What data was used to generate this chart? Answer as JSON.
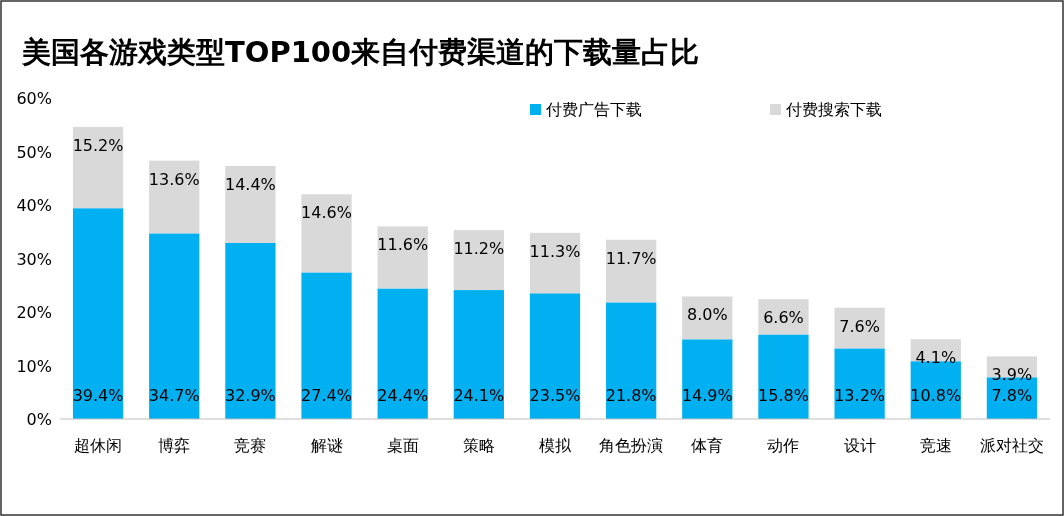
{
  "chart_data": {
    "type": "bar",
    "stacked": true,
    "title": "美国各游戏类型TOP100来自付费渠道的下载量占比",
    "categories": [
      "超休闲",
      "博弈",
      "竞赛",
      "解谜",
      "桌面",
      "策略",
      "模拟",
      "角色扮演",
      "体育",
      "动作",
      "设计",
      "竞速",
      "派对社交"
    ],
    "series": [
      {
        "name": "付费广告下载",
        "color": "#00b0f0",
        "values": [
          39.4,
          34.7,
          32.9,
          27.4,
          24.4,
          24.1,
          23.5,
          21.8,
          14.9,
          15.8,
          13.2,
          10.8,
          7.8
        ],
        "value_labels": [
          "39.4%",
          "34.7%",
          "32.9%",
          "27.4%",
          "24.4%",
          "24.1%",
          "23.5%",
          "21.8%",
          "14.9%",
          "15.8%",
          "13.2%",
          "10.8%",
          "7.8%"
        ]
      },
      {
        "name": "付费搜索下载",
        "color": "#d9d9d9",
        "values": [
          15.2,
          13.6,
          14.4,
          14.6,
          11.6,
          11.2,
          11.3,
          11.7,
          8.0,
          6.6,
          7.6,
          4.1,
          3.9
        ],
        "value_labels": [
          "15.2%",
          "13.6%",
          "14.4%",
          "14.6%",
          "11.6%",
          "11.2%",
          "11.3%",
          "11.7%",
          "8.0%",
          "6.6%",
          "7.6%",
          "4.1%",
          "3.9%"
        ]
      }
    ],
    "ylim": [
      0,
      60
    ],
    "yticks": [
      {
        "value": 0,
        "label": "0%"
      },
      {
        "value": 10,
        "label": "10%"
      },
      {
        "value": 20,
        "label": "20%"
      },
      {
        "value": 30,
        "label": "30%"
      },
      {
        "value": 40,
        "label": "40%"
      },
      {
        "value": 50,
        "label": "50%"
      },
      {
        "value": 60,
        "label": "60%"
      }
    ],
    "grid": false,
    "legend": "top"
  }
}
